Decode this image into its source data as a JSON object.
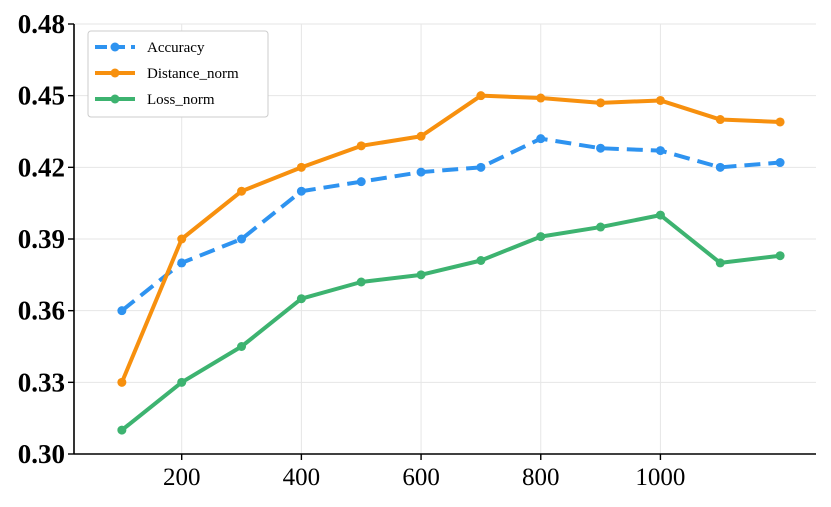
{
  "chart_data": {
    "type": "line",
    "title": "",
    "xlabel": "",
    "ylabel": "",
    "x": [
      100,
      200,
      300,
      400,
      500,
      600,
      700,
      800,
      900,
      1000,
      1100,
      1200
    ],
    "xlim": [
      20,
      1260
    ],
    "ylim": [
      0.3,
      0.48
    ],
    "x_ticks": [
      "200",
      "400",
      "600",
      "800",
      "1000"
    ],
    "x_tick_values": [
      200,
      400,
      600,
      800,
      1000
    ],
    "y_ticks": [
      "0.30",
      "0.33",
      "0.36",
      "0.39",
      "0.42",
      "0.45",
      "0.48"
    ],
    "y_tick_values": [
      0.3,
      0.33,
      0.36,
      0.39,
      0.42,
      0.45,
      0.48
    ],
    "grid": true,
    "legend_position": "top-left",
    "series": [
      {
        "name": "Accuracy",
        "color": "#2E93F0",
        "dashed": true,
        "values": [
          0.36,
          0.38,
          0.39,
          0.41,
          0.414,
          0.418,
          0.42,
          0.432,
          0.428,
          0.427,
          0.42,
          0.422
        ]
      },
      {
        "name": "Distance_norm",
        "color": "#F7900E",
        "dashed": false,
        "values": [
          0.33,
          0.39,
          0.41,
          0.42,
          0.429,
          0.433,
          0.45,
          0.449,
          0.447,
          0.448,
          0.44,
          0.439
        ]
      },
      {
        "name": "Loss_norm",
        "color": "#3DB370",
        "dashed": false,
        "values": [
          0.31,
          0.33,
          0.345,
          0.365,
          0.372,
          0.375,
          0.381,
          0.391,
          0.395,
          0.4,
          0.38,
          0.383
        ]
      }
    ]
  }
}
